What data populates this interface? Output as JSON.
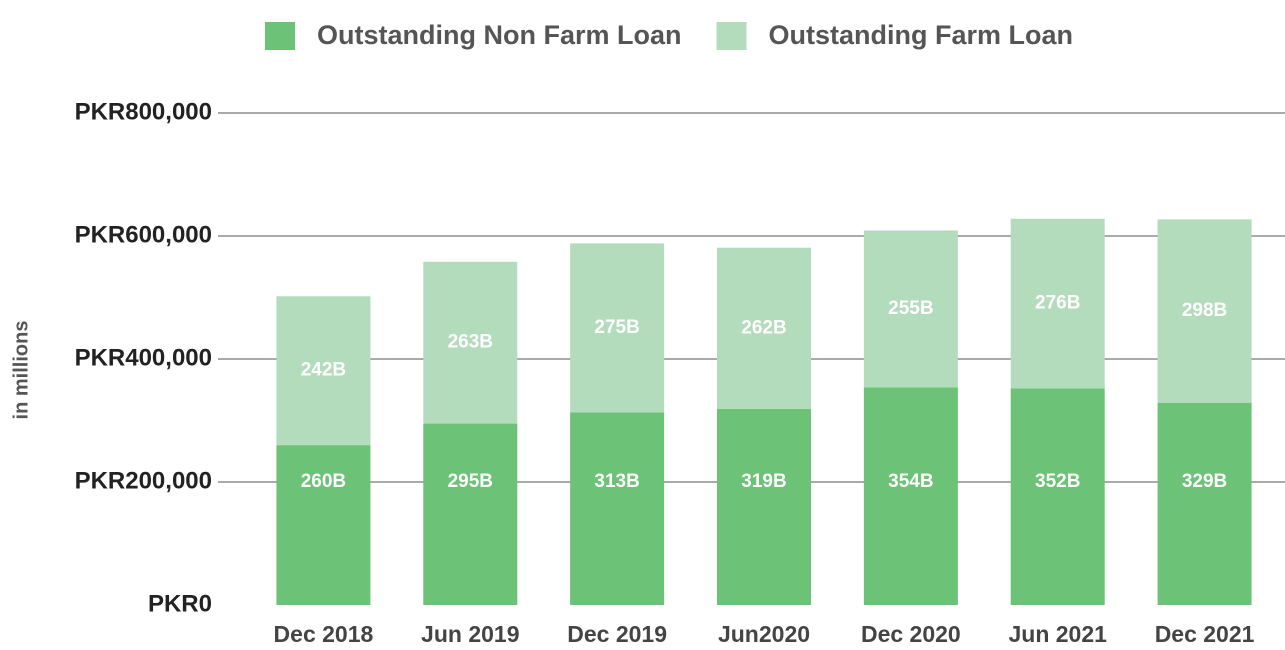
{
  "chart_data": {
    "type": "stacked-bar",
    "y_label": "in millions",
    "categories": [
      "Dec 2018",
      "Jun 2019",
      "Dec 2019",
      "Jun2020",
      "Dec 2020",
      "Jun 2021",
      "Dec 2021"
    ],
    "series": [
      {
        "name": "Outstanding Non Farm Loan",
        "color": "#6cc276",
        "values": [
          260000,
          295000,
          313000,
          319000,
          354000,
          352000,
          329000
        ],
        "value_labels": [
          "260B",
          "295B",
          "313B",
          "319B",
          "354B",
          "352B",
          "329B"
        ]
      },
      {
        "name": "Outstanding Farm Loan",
        "color": "#b3dcbc",
        "values": [
          242000,
          263000,
          275000,
          262000,
          255000,
          276000,
          298000
        ],
        "value_labels": [
          "242B",
          "263B",
          "275B",
          "262B",
          "255B",
          "276B",
          "298B"
        ]
      }
    ],
    "ylim": [
      0,
      800000
    ],
    "yticks": [
      {
        "value": 0,
        "label": "PKR0"
      },
      {
        "value": 200000,
        "label": "PKR200,000"
      },
      {
        "value": 400000,
        "label": "PKR400,000"
      },
      {
        "value": 600000,
        "label": "PKR600,000"
      },
      {
        "value": 800000,
        "label": "PKR800,000"
      }
    ],
    "grid": true,
    "legend": "top"
  }
}
